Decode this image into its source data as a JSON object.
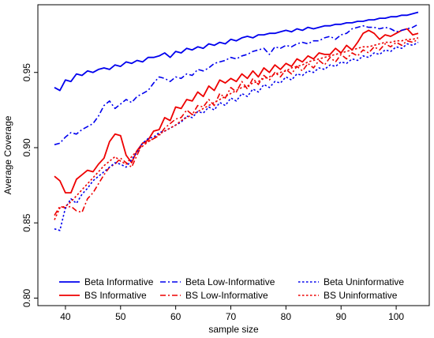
{
  "chart_data": {
    "type": "line",
    "xlabel": "sample size",
    "ylabel": "Average Coverage",
    "xlim": [
      35,
      106
    ],
    "ylim": [
      0.795,
      0.995
    ],
    "x_ticks": [
      40,
      50,
      60,
      70,
      80,
      90,
      100
    ],
    "y_ticks": [
      0.8,
      0.85,
      0.9,
      0.95
    ],
    "y_tick_labels": [
      "0.80",
      "0.85",
      "0.90",
      "0.95"
    ],
    "grid": false,
    "legend_position": "bottom",
    "x": [
      38,
      39,
      40,
      41,
      42,
      43,
      44,
      45,
      46,
      47,
      48,
      49,
      50,
      51,
      52,
      53,
      54,
      55,
      56,
      57,
      58,
      59,
      60,
      61,
      62,
      63,
      64,
      65,
      66,
      67,
      68,
      69,
      70,
      71,
      72,
      73,
      74,
      75,
      76,
      77,
      78,
      79,
      80,
      81,
      82,
      83,
      84,
      85,
      86,
      87,
      88,
      89,
      90,
      91,
      92,
      93,
      94,
      95,
      96,
      97,
      98,
      99,
      100,
      101,
      102,
      103,
      104
    ],
    "series": [
      {
        "name": "Beta Informative",
        "color": "#0000ee",
        "dash": "solid",
        "values": [
          0.94,
          0.938,
          0.945,
          0.944,
          0.949,
          0.948,
          0.951,
          0.95,
          0.952,
          0.953,
          0.952,
          0.955,
          0.954,
          0.957,
          0.956,
          0.958,
          0.957,
          0.96,
          0.96,
          0.961,
          0.963,
          0.96,
          0.964,
          0.963,
          0.966,
          0.965,
          0.967,
          0.966,
          0.969,
          0.968,
          0.97,
          0.969,
          0.972,
          0.971,
          0.973,
          0.974,
          0.973,
          0.975,
          0.975,
          0.976,
          0.976,
          0.977,
          0.978,
          0.977,
          0.979,
          0.978,
          0.98,
          0.979,
          0.98,
          0.981,
          0.981,
          0.982,
          0.982,
          0.983,
          0.983,
          0.984,
          0.984,
          0.985,
          0.985,
          0.986,
          0.986,
          0.987,
          0.987,
          0.988,
          0.988,
          0.989,
          0.99
        ]
      },
      {
        "name": "BS Informative",
        "color": "#ee0000",
        "dash": "solid",
        "values": [
          0.881,
          0.878,
          0.87,
          0.87,
          0.879,
          0.882,
          0.885,
          0.884,
          0.889,
          0.893,
          0.904,
          0.909,
          0.908,
          0.895,
          0.89,
          0.898,
          0.903,
          0.905,
          0.911,
          0.912,
          0.92,
          0.918,
          0.927,
          0.926,
          0.932,
          0.931,
          0.937,
          0.934,
          0.941,
          0.938,
          0.945,
          0.943,
          0.946,
          0.944,
          0.949,
          0.946,
          0.951,
          0.947,
          0.953,
          0.95,
          0.955,
          0.952,
          0.956,
          0.954,
          0.959,
          0.957,
          0.961,
          0.959,
          0.963,
          0.962,
          0.962,
          0.966,
          0.963,
          0.968,
          0.965,
          0.97,
          0.976,
          0.978,
          0.976,
          0.972,
          0.975,
          0.974,
          0.976,
          0.978,
          0.979,
          0.975,
          0.976
        ]
      },
      {
        "name": "Beta Low-Informative",
        "color": "#0000ee",
        "dash": "dashdot",
        "values": [
          0.902,
          0.903,
          0.907,
          0.91,
          0.909,
          0.912,
          0.914,
          0.916,
          0.921,
          0.928,
          0.931,
          0.926,
          0.929,
          0.932,
          0.93,
          0.934,
          0.936,
          0.938,
          0.943,
          0.947,
          0.946,
          0.944,
          0.947,
          0.946,
          0.949,
          0.948,
          0.952,
          0.951,
          0.953,
          0.956,
          0.957,
          0.958,
          0.96,
          0.959,
          0.961,
          0.962,
          0.964,
          0.965,
          0.966,
          0.962,
          0.967,
          0.966,
          0.968,
          0.967,
          0.969,
          0.97,
          0.969,
          0.971,
          0.971,
          0.973,
          0.974,
          0.972,
          0.975,
          0.976,
          0.979,
          0.98,
          0.981,
          0.98,
          0.98,
          0.979,
          0.98,
          0.979,
          0.977,
          0.978,
          0.979,
          0.98,
          0.982
        ]
      },
      {
        "name": "BS Low-Informative",
        "color": "#ee0000",
        "dash": "dashdot",
        "values": [
          0.855,
          0.861,
          0.86,
          0.861,
          0.858,
          0.857,
          0.866,
          0.87,
          0.876,
          0.882,
          0.887,
          0.889,
          0.893,
          0.89,
          0.887,
          0.895,
          0.903,
          0.904,
          0.906,
          0.908,
          0.913,
          0.916,
          0.919,
          0.92,
          0.925,
          0.922,
          0.928,
          0.927,
          0.932,
          0.928,
          0.936,
          0.933,
          0.94,
          0.937,
          0.944,
          0.939,
          0.946,
          0.942,
          0.948,
          0.945,
          0.95,
          0.947,
          0.952,
          0.949,
          0.954,
          0.951,
          0.956,
          0.953,
          0.958,
          0.955,
          0.96,
          0.957,
          0.962,
          0.959,
          0.963,
          0.961,
          0.965,
          0.963,
          0.967,
          0.965,
          0.969,
          0.967,
          0.97,
          0.968,
          0.971,
          0.97,
          0.972
        ]
      },
      {
        "name": "Beta Uninformative",
        "color": "#0000ee",
        "dash": "dotted",
        "values": [
          0.846,
          0.845,
          0.86,
          0.866,
          0.863,
          0.869,
          0.873,
          0.878,
          0.881,
          0.884,
          0.887,
          0.89,
          0.889,
          0.887,
          0.892,
          0.897,
          0.903,
          0.906,
          0.907,
          0.91,
          0.911,
          0.913,
          0.915,
          0.917,
          0.921,
          0.92,
          0.924,
          0.923,
          0.927,
          0.925,
          0.93,
          0.928,
          0.933,
          0.931,
          0.936,
          0.934,
          0.939,
          0.937,
          0.942,
          0.94,
          0.944,
          0.943,
          0.947,
          0.945,
          0.949,
          0.948,
          0.951,
          0.95,
          0.953,
          0.952,
          0.955,
          0.954,
          0.957,
          0.956,
          0.959,
          0.958,
          0.961,
          0.96,
          0.963,
          0.962,
          0.965,
          0.964,
          0.967,
          0.966,
          0.969,
          0.968,
          0.97
        ]
      },
      {
        "name": "BS Uninformative",
        "color": "#ee0000",
        "dash": "dotted",
        "values": [
          0.852,
          0.86,
          0.861,
          0.864,
          0.868,
          0.872,
          0.876,
          0.88,
          0.884,
          0.888,
          0.891,
          0.894,
          0.891,
          0.889,
          0.894,
          0.898,
          0.901,
          0.904,
          0.906,
          0.909,
          0.911,
          0.913,
          0.915,
          0.918,
          0.92,
          0.922,
          0.924,
          0.926,
          0.928,
          0.93,
          0.932,
          0.934,
          0.936,
          0.938,
          0.94,
          0.941,
          0.943,
          0.944,
          0.946,
          0.947,
          0.949,
          0.95,
          0.951,
          0.953,
          0.954,
          0.955,
          0.957,
          0.958,
          0.959,
          0.96,
          0.961,
          0.962,
          0.963,
          0.964,
          0.965,
          0.966,
          0.967,
          0.967,
          0.968,
          0.969,
          0.97,
          0.97,
          0.971,
          0.971,
          0.972,
          0.972,
          0.973
        ]
      }
    ]
  }
}
